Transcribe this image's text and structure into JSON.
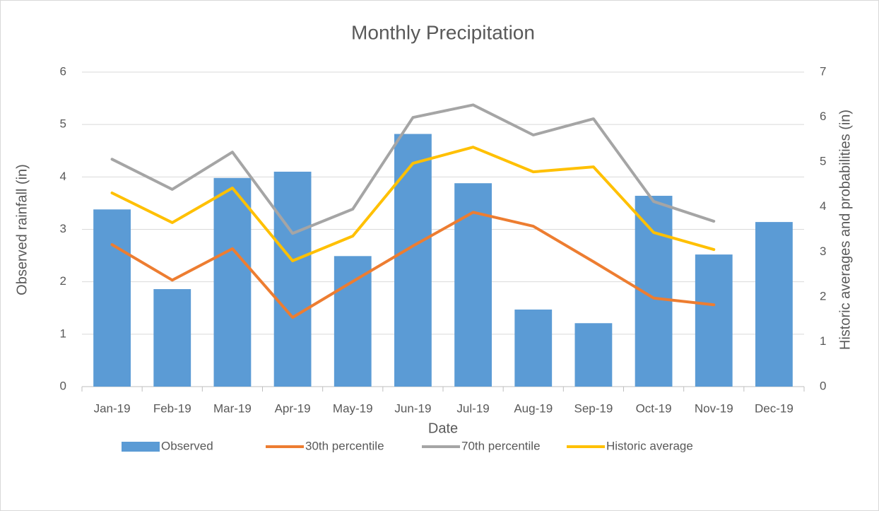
{
  "chart_data": {
    "type": "bar-line",
    "title": "Monthly Precipitation",
    "x_label": "Date",
    "y_label": "Observed rainfall (in)",
    "y2_label": "Historic averages and probabilities (in)",
    "categories": [
      "Jan-19",
      "Feb-19",
      "Mar-19",
      "Apr-19",
      "May-19",
      "Jun-19",
      "Jul-19",
      "Aug-19",
      "Sep-19",
      "Oct-19",
      "Nov-19",
      "Dec-19"
    ],
    "series": [
      {
        "name": "Observed",
        "type": "bar",
        "color": "#5b9bd5",
        "values": [
          3.38,
          1.86,
          3.98,
          4.1,
          2.49,
          4.82,
          3.88,
          1.47,
          1.21,
          3.64,
          2.52,
          3.14
        ]
      },
      {
        "name": "30th percentile",
        "type": "line",
        "axis": "y2",
        "color": "#ed7d31",
        "values": [
          3.16,
          2.37,
          3.07,
          1.54,
          2.34,
          3.13,
          3.88,
          3.57,
          2.78,
          1.97,
          1.82,
          null
        ]
      },
      {
        "name": "70th percentile",
        "type": "line",
        "axis": "y2",
        "color": "#a5a5a5",
        "values": [
          5.06,
          4.39,
          5.22,
          3.41,
          3.95,
          5.99,
          6.27,
          5.6,
          5.96,
          4.12,
          3.68,
          null
        ]
      },
      {
        "name": "Historic average",
        "type": "line",
        "axis": "y2",
        "color": "#ffc000",
        "values": [
          4.31,
          3.65,
          4.42,
          2.8,
          3.35,
          4.97,
          5.33,
          4.78,
          4.89,
          3.43,
          3.05,
          null
        ]
      }
    ],
    "ylim": [
      0,
      6
    ],
    "yticks": [
      0,
      1,
      2,
      3,
      4,
      5,
      6
    ],
    "y2lim": [
      0,
      7
    ],
    "y2ticks": [
      0,
      1,
      2,
      3,
      4,
      5,
      6,
      7
    ],
    "grid": true,
    "legend": "bottom"
  }
}
